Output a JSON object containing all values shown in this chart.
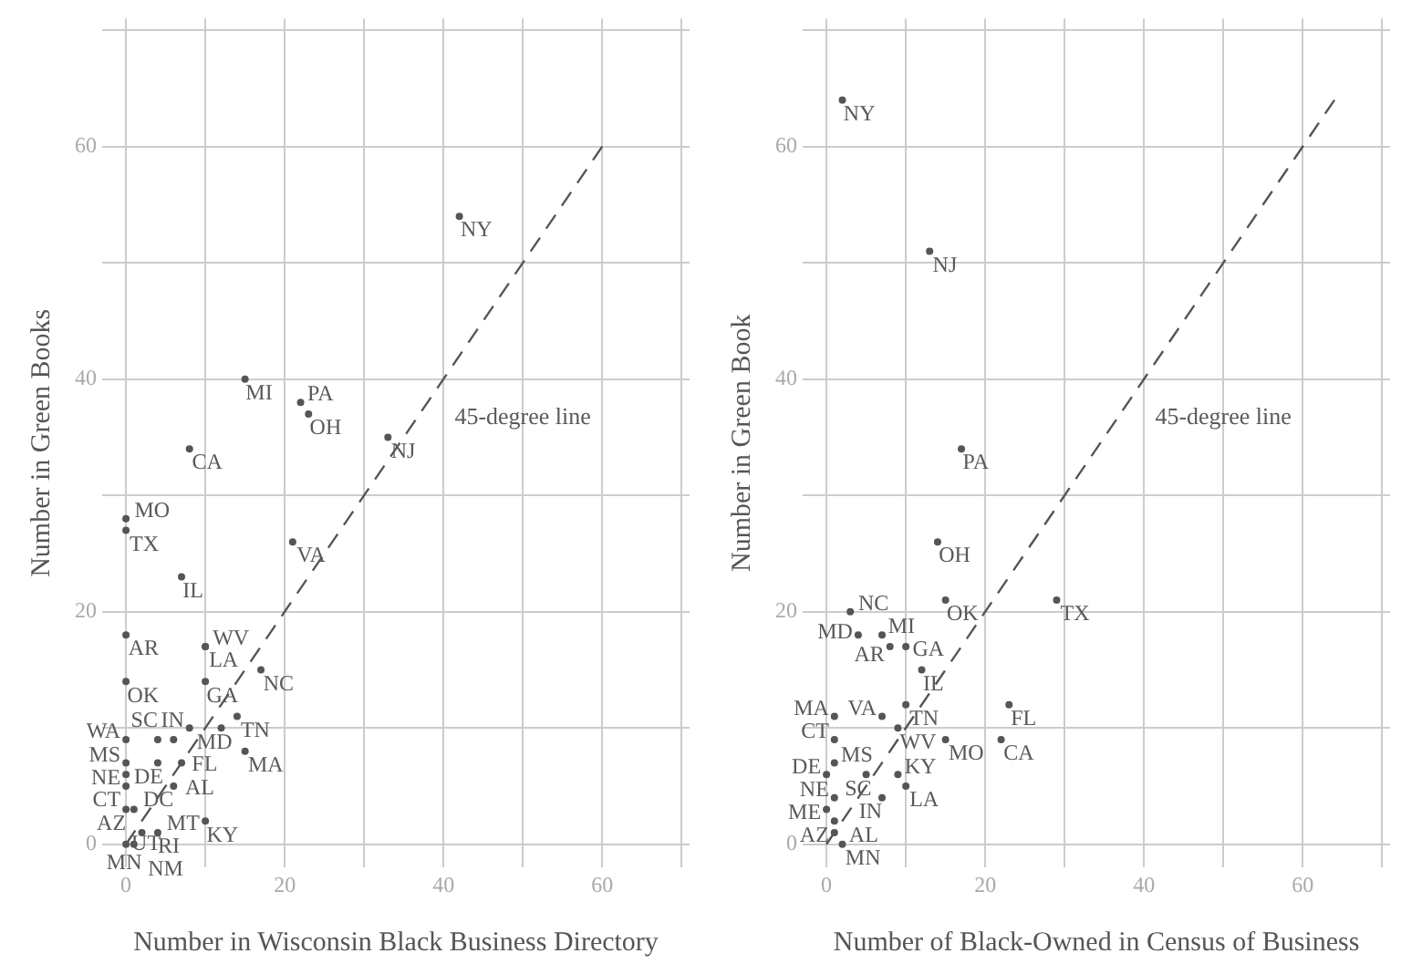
{
  "chart_data": [
    {
      "type": "scatter",
      "xlabel": "Number in Wisconsin Black Business Directory",
      "ylabel": "Number in Green Books",
      "xlim": [
        -3,
        71
      ],
      "ylim": [
        -2,
        71
      ],
      "xticks": [
        0,
        {
          "value": 10,
          "label": null
        },
        20,
        {
          "value": 30,
          "label": null
        },
        40,
        {
          "value": 50,
          "label": null
        },
        60,
        {
          "value": 70,
          "label": null
        }
      ],
      "yticks": [
        0,
        {
          "value": 10,
          "label": null
        },
        20,
        {
          "value": 30,
          "label": null
        },
        40,
        {
          "value": 50,
          "label": null
        },
        60,
        {
          "value": 70,
          "label": null
        }
      ],
      "grid": true,
      "annotations": [
        "45-degree line"
      ],
      "series": [
        {
          "marker": "circle",
          "color": "#555555",
          "x": [
            42,
            15,
            22,
            23,
            8,
            33,
            0,
            0,
            21,
            7,
            0,
            0,
            10,
            10,
            17,
            10,
            14,
            12,
            8,
            15,
            0,
            4,
            6,
            0,
            4,
            7,
            0,
            0,
            6,
            10,
            0,
            1,
            4,
            2,
            1,
            0
          ],
          "values": [
            54,
            40,
            38,
            37,
            34,
            35,
            28,
            27,
            26,
            23,
            18,
            14,
            17,
            17,
            15,
            14,
            11,
            10,
            10,
            8,
            9,
            9,
            9,
            7,
            7,
            7,
            6,
            5,
            5,
            2,
            3,
            3,
            1,
            1,
            0,
            0
          ],
          "value_labels": [
            "NY",
            "MI",
            "PA",
            "OH",
            "CA",
            "NJ",
            "MO",
            "TX",
            "VA",
            "IL",
            "AR",
            "OK",
            "LA",
            "WV",
            "NC",
            "GA",
            "TN",
            "MD",
            "IN",
            "MA",
            "WA",
            "SC",
            "FL",
            "MS",
            "DE",
            "AL",
            "NE",
            "CT",
            "DC",
            "KY",
            "AZ",
            "MT",
            "RI",
            "MN",
            "NM",
            "UT"
          ]
        },
        {
          "type": "line",
          "color": "#555555",
          "line_style": "dashed",
          "x": [
            0,
            60
          ],
          "values": [
            0,
            60
          ]
        }
      ]
    },
    {
      "type": "scatter",
      "xlabel": "Number of Black-Owned in Census of Business",
      "ylabel": "Number in Green Book",
      "xlim": [
        -3,
        71
      ],
      "ylim": [
        -2,
        71
      ],
      "xticks": [
        0,
        {
          "value": 10,
          "label": null
        },
        20,
        {
          "value": 30,
          "label": null
        },
        40,
        {
          "value": 50,
          "label": null
        },
        60,
        {
          "value": 70,
          "label": null
        }
      ],
      "yticks": [
        0,
        {
          "value": 10,
          "label": null
        },
        20,
        {
          "value": 30,
          "label": null
        },
        40,
        {
          "value": 50,
          "label": null
        },
        60,
        {
          "value": 70,
          "label": null
        }
      ],
      "grid": true,
      "annotations": [
        "45-degree line"
      ],
      "series": [
        {
          "marker": "circle",
          "color": "#555555",
          "x": [
            2,
            13,
            17,
            14,
            15,
            29,
            3,
            4,
            7,
            8,
            10,
            12,
            10,
            23,
            1,
            7,
            9,
            1,
            15,
            22,
            1,
            0,
            5,
            9,
            10,
            1,
            7,
            0,
            1,
            1,
            2
          ],
          "values": [
            64,
            51,
            34,
            26,
            21,
            21,
            20,
            18,
            18,
            17,
            17,
            15,
            12,
            12,
            11,
            11,
            10,
            9,
            9,
            9,
            7,
            6,
            6,
            6,
            5,
            4,
            4,
            3,
            2,
            1,
            0
          ],
          "value_labels": [
            "NY",
            "NJ",
            "PA",
            "OH",
            "OK",
            "TX",
            "NC",
            "MD",
            "MI",
            "AR",
            "GA",
            "IL",
            "TN",
            "FL",
            "MA",
            "VA",
            "WV",
            "CT",
            "MO",
            "CA",
            "MS",
            "DE",
            "SC",
            "KY",
            "LA",
            "NE",
            "IN",
            "ME",
            "AZ",
            "AL",
            "MN"
          ]
        },
        {
          "type": "line",
          "color": "#555555",
          "line_style": "dashed",
          "x": [
            0,
            64
          ],
          "values": [
            0,
            64
          ]
        }
      ]
    }
  ]
}
